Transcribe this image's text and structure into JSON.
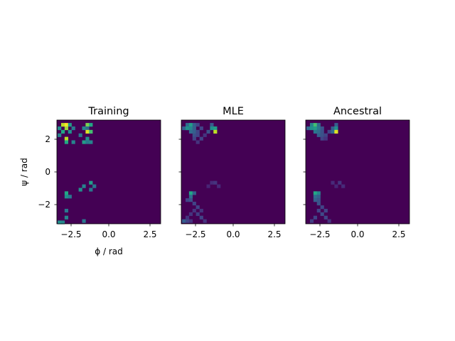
{
  "chart_data": [
    {
      "type": "heatmap",
      "title": "Training",
      "xlabel": "ϕ / rad",
      "ylabel": "ψ / rad",
      "xlim": [
        -3.1416,
        3.1416
      ],
      "ylim": [
        -3.1416,
        3.1416
      ],
      "x_ticks": [
        "−2.5",
        "0.0",
        "2.5"
      ],
      "y_ticks": [
        "2",
        "0",
        "−2"
      ],
      "grid": false,
      "colormap": "viridis",
      "background": "#440154",
      "cells": [
        {
          "x": -2.78,
          "y": 2.86,
          "v": 0.9
        },
        {
          "x": -2.57,
          "y": 2.86,
          "v": 1.0
        },
        {
          "x": -2.36,
          "y": 2.86,
          "v": 0.55
        },
        {
          "x": -1.3,
          "y": 2.86,
          "v": 0.8
        },
        {
          "x": -1.09,
          "y": 2.86,
          "v": 0.6
        },
        {
          "x": -2.99,
          "y": 2.65,
          "v": 0.5
        },
        {
          "x": -2.57,
          "y": 2.65,
          "v": 0.85
        },
        {
          "x": -2.15,
          "y": 2.65,
          "v": 0.4
        },
        {
          "x": -1.51,
          "y": 2.65,
          "v": 0.45
        },
        {
          "x": -1.3,
          "y": 2.65,
          "v": 0.35
        },
        {
          "x": -2.78,
          "y": 2.44,
          "v": 0.6
        },
        {
          "x": -2.36,
          "y": 2.44,
          "v": 0.5
        },
        {
          "x": -1.3,
          "y": 2.44,
          "v": 0.95
        },
        {
          "x": -1.09,
          "y": 2.44,
          "v": 0.7
        },
        {
          "x": -2.99,
          "y": 2.23,
          "v": 0.45
        },
        {
          "x": -1.72,
          "y": 2.23,
          "v": 0.4
        },
        {
          "x": -2.57,
          "y": 2.02,
          "v": 0.9
        },
        {
          "x": -1.3,
          "y": 2.02,
          "v": 0.5
        },
        {
          "x": -2.57,
          "y": 1.81,
          "v": 0.6
        },
        {
          "x": -2.15,
          "y": 1.81,
          "v": 0.45
        },
        {
          "x": -1.51,
          "y": 1.81,
          "v": 0.55
        },
        {
          "x": -1.3,
          "y": 1.81,
          "v": 0.4
        },
        {
          "x": -1.09,
          "y": 1.81,
          "v": 0.45
        },
        {
          "x": -1.09,
          "y": -0.65,
          "v": 0.55
        },
        {
          "x": -1.51,
          "y": -0.86,
          "v": 0.45
        },
        {
          "x": -0.88,
          "y": -0.86,
          "v": 0.4
        },
        {
          "x": -1.72,
          "y": -1.07,
          "v": 0.5
        },
        {
          "x": -1.09,
          "y": -1.07,
          "v": 0.4
        },
        {
          "x": -2.57,
          "y": -1.28,
          "v": 0.6
        },
        {
          "x": -2.57,
          "y": -1.49,
          "v": 0.5
        },
        {
          "x": -2.36,
          "y": -1.49,
          "v": 0.4
        },
        {
          "x": -2.57,
          "y": -2.34,
          "v": 0.4
        },
        {
          "x": -2.57,
          "y": -2.76,
          "v": 0.45
        },
        {
          "x": -1.51,
          "y": -2.97,
          "v": 0.4
        },
        {
          "x": -2.99,
          "y": -3.05,
          "v": 0.5
        },
        {
          "x": -2.78,
          "y": -3.05,
          "v": 0.45
        }
      ]
    },
    {
      "type": "heatmap",
      "title": "MLE",
      "xlabel": "",
      "ylabel": "",
      "xlim": [
        -3.1416,
        3.1416
      ],
      "ylim": [
        -3.1416,
        3.1416
      ],
      "x_ticks": [
        "−2.5",
        "0.0",
        "2.5"
      ],
      "y_ticks": [
        "2",
        "0",
        "−2"
      ],
      "grid": false,
      "colormap": "viridis",
      "background": "#440154",
      "cells": [
        {
          "x": -2.78,
          "y": 2.86,
          "v": 0.35
        },
        {
          "x": -2.57,
          "y": 2.86,
          "v": 0.55
        },
        {
          "x": -2.36,
          "y": 2.86,
          "v": 0.3
        },
        {
          "x": -2.15,
          "y": 2.86,
          "v": 0.2
        },
        {
          "x": -1.3,
          "y": 2.86,
          "v": 0.3
        },
        {
          "x": -2.99,
          "y": 2.65,
          "v": 0.3
        },
        {
          "x": -2.78,
          "y": 2.65,
          "v": 0.5
        },
        {
          "x": -2.57,
          "y": 2.65,
          "v": 0.45
        },
        {
          "x": -2.36,
          "y": 2.65,
          "v": 0.3
        },
        {
          "x": -1.93,
          "y": 2.65,
          "v": 0.2
        },
        {
          "x": -1.3,
          "y": 2.65,
          "v": 0.5
        },
        {
          "x": -1.09,
          "y": 2.65,
          "v": 0.55
        },
        {
          "x": -2.57,
          "y": 2.44,
          "v": 0.35
        },
        {
          "x": -2.36,
          "y": 2.44,
          "v": 0.3
        },
        {
          "x": -2.15,
          "y": 2.44,
          "v": 0.2
        },
        {
          "x": -1.51,
          "y": 2.44,
          "v": 0.25
        },
        {
          "x": -1.09,
          "y": 2.44,
          "v": 0.9
        },
        {
          "x": -2.36,
          "y": 2.23,
          "v": 0.25
        },
        {
          "x": -2.15,
          "y": 2.23,
          "v": 0.2
        },
        {
          "x": -1.72,
          "y": 2.23,
          "v": 0.15
        },
        {
          "x": -2.36,
          "y": 2.02,
          "v": 0.2
        },
        {
          "x": -1.93,
          "y": 2.02,
          "v": 0.2
        },
        {
          "x": -2.15,
          "y": 1.81,
          "v": 0.15
        },
        {
          "x": -1.3,
          "y": -0.65,
          "v": 0.12
        },
        {
          "x": -1.09,
          "y": -0.65,
          "v": 0.15
        },
        {
          "x": -1.51,
          "y": -0.86,
          "v": 0.1
        },
        {
          "x": -0.88,
          "y": -0.86,
          "v": 0.12
        },
        {
          "x": -2.57,
          "y": -1.28,
          "v": 0.6
        },
        {
          "x": -2.36,
          "y": -1.28,
          "v": 0.3
        },
        {
          "x": -2.57,
          "y": -1.49,
          "v": 0.35
        },
        {
          "x": -2.78,
          "y": -1.7,
          "v": 0.2
        },
        {
          "x": -2.57,
          "y": -1.7,
          "v": 0.25
        },
        {
          "x": -2.36,
          "y": -1.91,
          "v": 0.2
        },
        {
          "x": -2.15,
          "y": -2.13,
          "v": 0.2
        },
        {
          "x": -2.36,
          "y": -2.34,
          "v": 0.15
        },
        {
          "x": -1.93,
          "y": -2.34,
          "v": 0.15
        },
        {
          "x": -2.57,
          "y": -2.55,
          "v": 0.15
        },
        {
          "x": -2.15,
          "y": -2.55,
          "v": 0.18
        },
        {
          "x": -2.78,
          "y": -2.76,
          "v": 0.15
        },
        {
          "x": -1.93,
          "y": -2.76,
          "v": 0.2
        },
        {
          "x": -2.99,
          "y": -2.97,
          "v": 0.3
        },
        {
          "x": -2.78,
          "y": -2.97,
          "v": 0.2
        },
        {
          "x": -2.57,
          "y": -2.97,
          "v": 0.15
        },
        {
          "x": -1.72,
          "y": -2.97,
          "v": 0.15
        }
      ]
    },
    {
      "type": "heatmap",
      "title": "Ancestral",
      "xlabel": "",
      "ylabel": "",
      "xlim": [
        -3.1416,
        3.1416
      ],
      "ylim": [
        -3.1416,
        3.1416
      ],
      "x_ticks": [
        "−2.5",
        "0.0",
        "2.5"
      ],
      "y_ticks": [
        "2",
        "0",
        "−2"
      ],
      "grid": false,
      "colormap": "viridis",
      "background": "#440154",
      "cells": [
        {
          "x": -2.78,
          "y": 2.86,
          "v": 0.45
        },
        {
          "x": -2.57,
          "y": 2.86,
          "v": 0.7
        },
        {
          "x": -2.36,
          "y": 2.86,
          "v": 0.35
        },
        {
          "x": -1.3,
          "y": 2.86,
          "v": 0.3
        },
        {
          "x": -2.99,
          "y": 2.65,
          "v": 0.35
        },
        {
          "x": -2.78,
          "y": 2.65,
          "v": 0.5
        },
        {
          "x": -2.57,
          "y": 2.65,
          "v": 0.55
        },
        {
          "x": -2.36,
          "y": 2.65,
          "v": 0.4
        },
        {
          "x": -2.15,
          "y": 2.65,
          "v": 0.25
        },
        {
          "x": -1.51,
          "y": 2.65,
          "v": 0.3
        },
        {
          "x": -1.3,
          "y": 2.65,
          "v": 0.5
        },
        {
          "x": -2.57,
          "y": 2.44,
          "v": 0.4
        },
        {
          "x": -2.36,
          "y": 2.44,
          "v": 0.35
        },
        {
          "x": -2.15,
          "y": 2.44,
          "v": 0.25
        },
        {
          "x": -1.72,
          "y": 2.44,
          "v": 0.2
        },
        {
          "x": -1.51,
          "y": 2.44,
          "v": 0.35
        },
        {
          "x": -1.3,
          "y": 2.44,
          "v": 0.95
        },
        {
          "x": -2.36,
          "y": 2.23,
          "v": 0.3
        },
        {
          "x": -2.15,
          "y": 2.23,
          "v": 0.25
        },
        {
          "x": -1.93,
          "y": 2.23,
          "v": 0.2
        },
        {
          "x": -2.15,
          "y": 2.02,
          "v": 0.2
        },
        {
          "x": -1.93,
          "y": 2.02,
          "v": 0.15
        },
        {
          "x": -1.51,
          "y": -0.65,
          "v": 0.12
        },
        {
          "x": -1.09,
          "y": -0.65,
          "v": 0.15
        },
        {
          "x": -1.3,
          "y": -0.86,
          "v": 0.1
        },
        {
          "x": -0.88,
          "y": -0.86,
          "v": 0.12
        },
        {
          "x": -2.57,
          "y": -1.28,
          "v": 0.6
        },
        {
          "x": -2.36,
          "y": -1.28,
          "v": 0.45
        },
        {
          "x": -2.57,
          "y": -1.49,
          "v": 0.35
        },
        {
          "x": -2.36,
          "y": -1.49,
          "v": 0.3
        },
        {
          "x": -2.57,
          "y": -1.7,
          "v": 0.3
        },
        {
          "x": -2.36,
          "y": -1.7,
          "v": 0.25
        },
        {
          "x": -2.36,
          "y": -1.91,
          "v": 0.25
        },
        {
          "x": -2.15,
          "y": -2.13,
          "v": 0.2
        },
        {
          "x": -2.36,
          "y": -2.34,
          "v": 0.2
        },
        {
          "x": -1.93,
          "y": -2.34,
          "v": 0.2
        },
        {
          "x": -2.15,
          "y": -2.55,
          "v": 0.22
        },
        {
          "x": -2.57,
          "y": -2.76,
          "v": 0.2
        },
        {
          "x": -1.93,
          "y": -2.76,
          "v": 0.2
        },
        {
          "x": -2.78,
          "y": -2.97,
          "v": 0.18
        },
        {
          "x": -1.72,
          "y": -2.97,
          "v": 0.15
        }
      ]
    }
  ]
}
